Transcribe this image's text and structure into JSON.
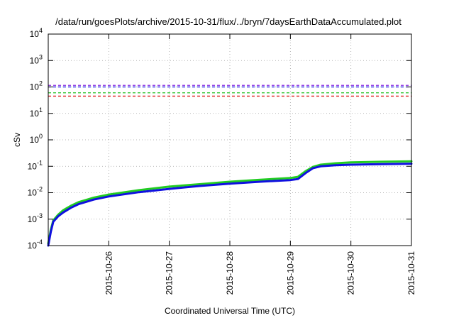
{
  "chart_data": {
    "type": "line",
    "title": "/data/run/goesPlots/archive/2015-10-31/flux/../bryn/7daysEarthDataAccumulated.plot",
    "xlabel": "Coordinated Universal Time (UTC)",
    "ylabel": "cSv",
    "xlim": [
      "2015-10-25T00:00",
      "2015-10-31T00:00"
    ],
    "ylim": [
      0.0001,
      10000
    ],
    "yscale": "log",
    "grid": true,
    "legend": "none",
    "x_ticks": [
      "2015-10-26",
      "2015-10-27",
      "2015-10-28",
      "2015-10-29",
      "2015-10-30",
      "2015-10-31"
    ],
    "y_ticks": [
      {
        "value": 0.0001,
        "base": "10",
        "exp": "-4"
      },
      {
        "value": 0.001,
        "base": "10",
        "exp": "-3"
      },
      {
        "value": 0.01,
        "base": "10",
        "exp": "-2"
      },
      {
        "value": 0.1,
        "base": "10",
        "exp": "-1"
      },
      {
        "value": 1,
        "base": "10",
        "exp": "0"
      },
      {
        "value": 10,
        "base": "10",
        "exp": "1"
      },
      {
        "value": 100,
        "base": "10",
        "exp": "2"
      },
      {
        "value": 1000,
        "base": "10",
        "exp": "3"
      },
      {
        "value": 10000,
        "base": "10",
        "exp": "4"
      }
    ],
    "thresholds": [
      {
        "value": 115,
        "color": "#8b2be2"
      },
      {
        "value": 100,
        "color": "#1010e0"
      },
      {
        "value": 60,
        "color": "#22c022"
      },
      {
        "value": 45,
        "color": "#e02020"
      }
    ],
    "series": [
      {
        "color": "#22cc22",
        "x": [
          "2015-10-25T00:00",
          "2015-10-25T01:00",
          "2015-10-25T02:00",
          "2015-10-25T04:00",
          "2015-10-25T06:00",
          "2015-10-25T09:00",
          "2015-10-25T12:00",
          "2015-10-25T18:00",
          "2015-10-26T00:00",
          "2015-10-26T12:00",
          "2015-10-27T00:00",
          "2015-10-27T12:00",
          "2015-10-28T00:00",
          "2015-10-28T12:00",
          "2015-10-29T00:00",
          "2015-10-29T03:00",
          "2015-10-29T06:00",
          "2015-10-29T09:00",
          "2015-10-29T12:00",
          "2015-10-29T18:00",
          "2015-10-30T00:00",
          "2015-10-30T12:00",
          "2015-10-31T00:00"
        ],
        "y": [
          0.00012,
          0.0004,
          0.0009,
          0.0015,
          0.0022,
          0.0032,
          0.0044,
          0.0065,
          0.0085,
          0.0125,
          0.017,
          0.021,
          0.026,
          0.031,
          0.036,
          0.04,
          0.065,
          0.095,
          0.115,
          0.13,
          0.14,
          0.148,
          0.155
        ]
      },
      {
        "color": "#1010e0",
        "x": [
          "2015-10-25T00:00",
          "2015-10-25T01:00",
          "2015-10-25T02:00",
          "2015-10-25T04:00",
          "2015-10-25T06:00",
          "2015-10-25T09:00",
          "2015-10-25T12:00",
          "2015-10-25T18:00",
          "2015-10-26T00:00",
          "2015-10-26T12:00",
          "2015-10-27T00:00",
          "2015-10-27T12:00",
          "2015-10-28T00:00",
          "2015-10-28T12:00",
          "2015-10-29T00:00",
          "2015-10-29T03:00",
          "2015-10-29T06:00",
          "2015-10-29T09:00",
          "2015-10-29T12:00",
          "2015-10-29T18:00",
          "2015-10-30T00:00",
          "2015-10-30T12:00",
          "2015-10-31T00:00"
        ],
        "y": [
          0.0001,
          0.00033,
          0.0008,
          0.0013,
          0.0018,
          0.0027,
          0.0037,
          0.0055,
          0.0072,
          0.0105,
          0.014,
          0.018,
          0.022,
          0.026,
          0.03,
          0.033,
          0.055,
          0.085,
          0.1,
          0.11,
          0.115,
          0.12,
          0.125
        ]
      }
    ]
  }
}
